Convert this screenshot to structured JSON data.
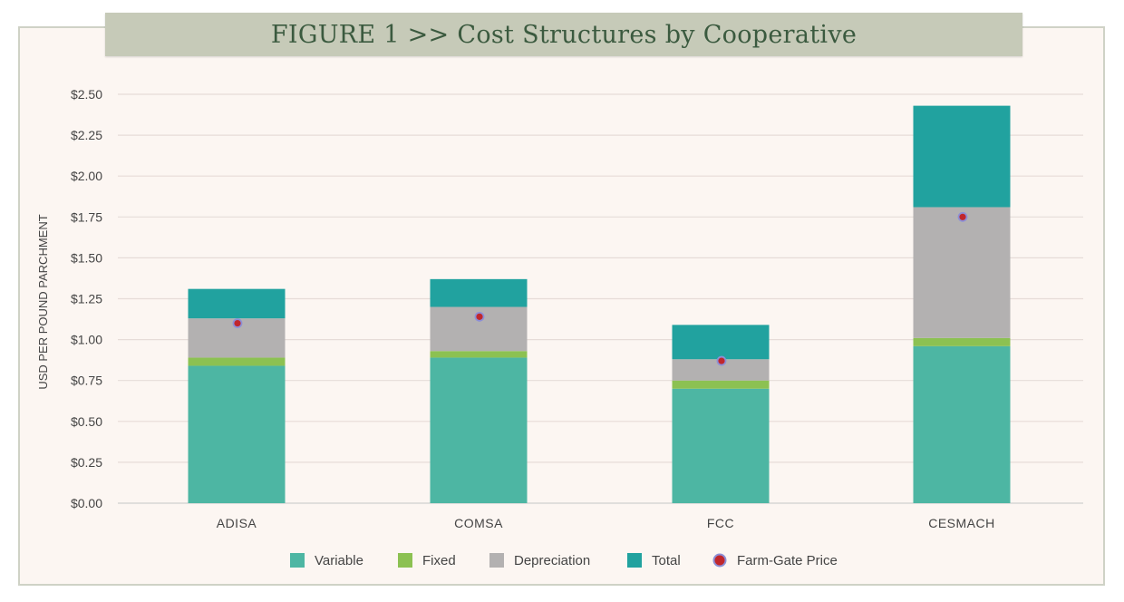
{
  "figure": {
    "title": "FIGURE 1   >>   Cost Structures by Cooperative"
  },
  "chart_data": {
    "type": "bar",
    "stacked": true,
    "title": "FIGURE 1   >>   Cost Structures by Cooperative",
    "xlabel": "",
    "ylabel": "USD PER POUND PARCHMENT",
    "ylim": [
      0,
      2.5
    ],
    "yticks": [
      "$0.00",
      "$0.25",
      "$0.50",
      "$0.75",
      "$1.00",
      "$1.25",
      "$1.50",
      "$1.75",
      "$2.00",
      "$2.25",
      "$2.50"
    ],
    "ytick_values": [
      0,
      0.25,
      0.5,
      0.75,
      1.0,
      1.25,
      1.5,
      1.75,
      2.0,
      2.25,
      2.5
    ],
    "grid": true,
    "legend_position": "bottom",
    "categories": [
      "ADISA",
      "COMSA",
      "FCC",
      "CESMACH"
    ],
    "series": [
      {
        "name": "Variable",
        "color": "#4db6a3",
        "values": [
          0.84,
          0.89,
          0.7,
          0.96
        ]
      },
      {
        "name": "Fixed",
        "color": "#8cc152",
        "values": [
          0.05,
          0.04,
          0.05,
          0.05
        ]
      },
      {
        "name": "Depreciation",
        "color": "#b3b1b1",
        "values": [
          0.24,
          0.27,
          0.13,
          0.8
        ]
      },
      {
        "name": "Total",
        "color": "#21a29f",
        "values": [
          0.18,
          0.17,
          0.21,
          0.62
        ]
      }
    ],
    "markers": {
      "name": "Farm-Gate Price",
      "color": "#c0272d",
      "edge_color": "#8d8fd6",
      "values": [
        1.1,
        1.14,
        0.87,
        1.75
      ]
    }
  }
}
